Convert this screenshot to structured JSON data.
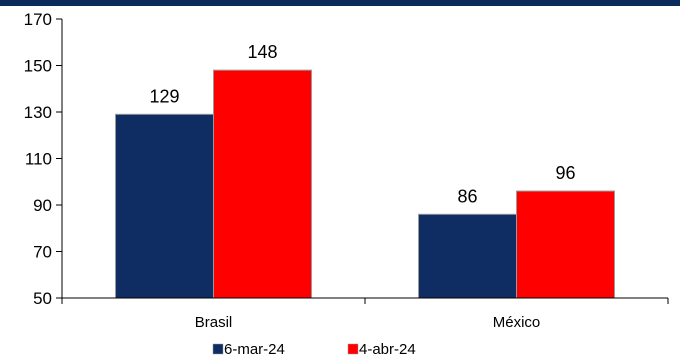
{
  "chart_data": {
    "type": "bar",
    "categories": [
      "Brasil",
      "México"
    ],
    "series": [
      {
        "name": "6-mar-24",
        "values": [
          129,
          86
        ],
        "color": "#0f2d62"
      },
      {
        "name": "4-abr-24",
        "values": [
          148,
          96
        ],
        "color": "#ff0000"
      }
    ],
    "ylim": [
      50,
      170
    ],
    "yticks": [
      50,
      70,
      90,
      110,
      130,
      150,
      170
    ],
    "grid": false,
    "legend_position": "bottom-center",
    "accent_band_color": "#0a2a5c"
  }
}
